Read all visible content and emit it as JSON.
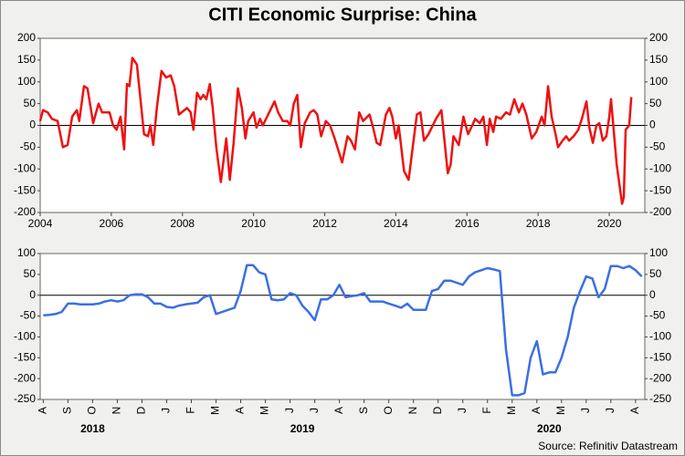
{
  "title": "CITI Economic Surprise: China",
  "source": "Source: Refinitiv Datastream",
  "chart_data": [
    {
      "type": "line",
      "x": [
        2004.0,
        2004.08,
        2004.21,
        2004.33,
        2004.49,
        2004.64,
        2004.77,
        2004.9,
        2005.03,
        2005.1,
        2005.23,
        2005.33,
        2005.49,
        2005.64,
        2005.74,
        2005.95,
        2006.05,
        2006.15,
        2006.26,
        2006.36,
        2006.44,
        2006.51,
        2006.59,
        2006.72,
        2006.82,
        2006.92,
        2007.03,
        2007.1,
        2007.18,
        2007.28,
        2007.41,
        2007.54,
        2007.67,
        2007.77,
        2007.9,
        2008.13,
        2008.23,
        2008.31,
        2008.41,
        2008.51,
        2008.59,
        2008.67,
        2008.77,
        2008.85,
        2008.95,
        2009.08,
        2009.15,
        2009.23,
        2009.33,
        2009.44,
        2009.56,
        2009.67,
        2009.77,
        2009.85,
        2010.0,
        2010.08,
        2010.18,
        2010.26,
        2010.41,
        2010.59,
        2010.69,
        2010.82,
        2010.95,
        2011.03,
        2011.13,
        2011.23,
        2011.33,
        2011.44,
        2011.59,
        2011.69,
        2011.79,
        2011.9,
        2012.03,
        2012.15,
        2012.28,
        2012.49,
        2012.64,
        2012.74,
        2012.85,
        2012.97,
        2013.08,
        2013.26,
        2013.36,
        2013.46,
        2013.56,
        2013.72,
        2013.82,
        2013.9,
        2014.0,
        2014.08,
        2014.23,
        2014.36,
        2014.46,
        2014.59,
        2014.69,
        2014.79,
        2014.92,
        2015.13,
        2015.28,
        2015.36,
        2015.46,
        2015.54,
        2015.62,
        2015.77,
        2015.9,
        2016.03,
        2016.15,
        2016.23,
        2016.36,
        2016.46,
        2016.56,
        2016.64,
        2016.74,
        2016.82,
        2016.95,
        2017.1,
        2017.21,
        2017.33,
        2017.46,
        2017.56,
        2017.67,
        2017.82,
        2017.95,
        2018.1,
        2018.18,
        2018.28,
        2018.38,
        2018.49,
        2018.56,
        2018.69,
        2018.79,
        2018.87,
        2019.0,
        2019.13,
        2019.23,
        2019.36,
        2019.44,
        2019.54,
        2019.64,
        2019.72,
        2019.82,
        2019.92,
        2020.0,
        2020.05,
        2020.21,
        2020.36,
        2020.41,
        2020.46,
        2020.56,
        2020.62
      ],
      "series": [
        {
          "color": "#ee1111",
          "values": [
            10,
            35,
            30,
            15,
            10,
            -50,
            -45,
            20,
            35,
            10,
            90,
            85,
            5,
            50,
            30,
            30,
            0,
            -10,
            20,
            -55,
            95,
            90,
            155,
            140,
            60,
            -20,
            -25,
            0,
            -45,
            40,
            125,
            110,
            115,
            90,
            25,
            40,
            30,
            -10,
            75,
            60,
            70,
            60,
            95,
            40,
            -50,
            -130,
            -85,
            -30,
            -125,
            -40,
            85,
            40,
            -30,
            10,
            30,
            -5,
            15,
            0,
            25,
            55,
            30,
            10,
            10,
            0,
            50,
            70,
            -50,
            5,
            30,
            35,
            25,
            -25,
            10,
            0,
            -30,
            -85,
            -25,
            -35,
            -55,
            30,
            10,
            25,
            -5,
            -40,
            -45,
            25,
            40,
            20,
            -30,
            0,
            -105,
            -125,
            -60,
            25,
            30,
            -35,
            -20,
            15,
            35,
            -30,
            -110,
            -90,
            -25,
            -45,
            20,
            -20,
            0,
            15,
            5,
            20,
            -45,
            15,
            -15,
            20,
            15,
            30,
            25,
            60,
            30,
            50,
            25,
            -30,
            -15,
            20,
            0,
            90,
            20,
            -20,
            -50,
            -35,
            -25,
            -35,
            -25,
            -10,
            15,
            55,
            -5,
            -40,
            0,
            5,
            -35,
            -25,
            20,
            60,
            -90,
            -180,
            -165,
            -10,
            0,
            65
          ]
        }
      ],
      "xlim": [
        2004,
        2021
      ],
      "xticks": [
        2004,
        2006,
        2008,
        2010,
        2012,
        2014,
        2016,
        2018,
        2020
      ],
      "ylim": [
        -200,
        200
      ],
      "yticks": [
        -200,
        -150,
        -100,
        -50,
        0,
        50,
        100,
        150,
        200
      ],
      "y2lim": [
        -200,
        200
      ],
      "y2ticks": [
        -200,
        -150,
        -100,
        -50,
        0,
        50,
        100,
        150,
        200
      ]
    },
    {
      "type": "line",
      "categories": [
        "A",
        null,
        null,
        null,
        "S",
        null,
        null,
        null,
        "O",
        null,
        null,
        null,
        "N",
        null,
        null,
        null,
        "D",
        null,
        null,
        null,
        "J",
        null,
        null,
        null,
        "F",
        null,
        null,
        null,
        "M",
        null,
        null,
        null,
        "A",
        null,
        null,
        null,
        "M",
        null,
        null,
        null,
        "J",
        null,
        null,
        null,
        "J",
        null,
        null,
        null,
        "A",
        null,
        null,
        null,
        "S",
        null,
        null,
        null,
        "O",
        null,
        null,
        null,
        "N",
        null,
        null,
        null,
        "D",
        null,
        null,
        null,
        "J",
        null,
        null,
        null,
        "F",
        null,
        null,
        null,
        "M",
        null,
        null,
        null,
        "A",
        null,
        null,
        null,
        "M",
        null,
        null,
        null,
        "J",
        null,
        null,
        null,
        "J",
        null,
        null,
        null,
        "A",
        null
      ],
      "year_labels": [
        "2018",
        "2019",
        "2020"
      ],
      "series": [
        {
          "color": "#3b6fe3",
          "values": [
            -48,
            -47,
            -45,
            -40,
            -20,
            -20,
            -22,
            -22,
            -22,
            -20,
            -15,
            -12,
            -15,
            -12,
            0,
            2,
            2,
            -5,
            -20,
            -20,
            -28,
            -30,
            -25,
            -22,
            -20,
            -18,
            -5,
            0,
            -45,
            -40,
            -35,
            -30,
            10,
            72,
            72,
            55,
            50,
            -10,
            -12,
            -10,
            5,
            0,
            -25,
            -40,
            -60,
            -10,
            -10,
            0,
            25,
            -5,
            -2,
            0,
            5,
            -15,
            -15,
            -15,
            -20,
            -25,
            -30,
            -20,
            -35,
            -35,
            -35,
            10,
            15,
            35,
            35,
            30,
            25,
            45,
            55,
            60,
            65,
            62,
            58,
            -130,
            -240,
            -240,
            -235,
            -150,
            -110,
            -190,
            -185,
            -185,
            -150,
            -100,
            -30,
            10,
            45,
            40,
            -5,
            15,
            70,
            70,
            65,
            70,
            60,
            45
          ]
        }
      ],
      "ylim": [
        -250,
        100
      ],
      "yticks": [
        -250,
        -200,
        -150,
        -100,
        -50,
        0,
        50,
        100
      ],
      "y2lim": [
        -250,
        100
      ],
      "y2ticks": [
        -250,
        -200,
        -150,
        -100,
        -50,
        0,
        50,
        100
      ]
    }
  ]
}
